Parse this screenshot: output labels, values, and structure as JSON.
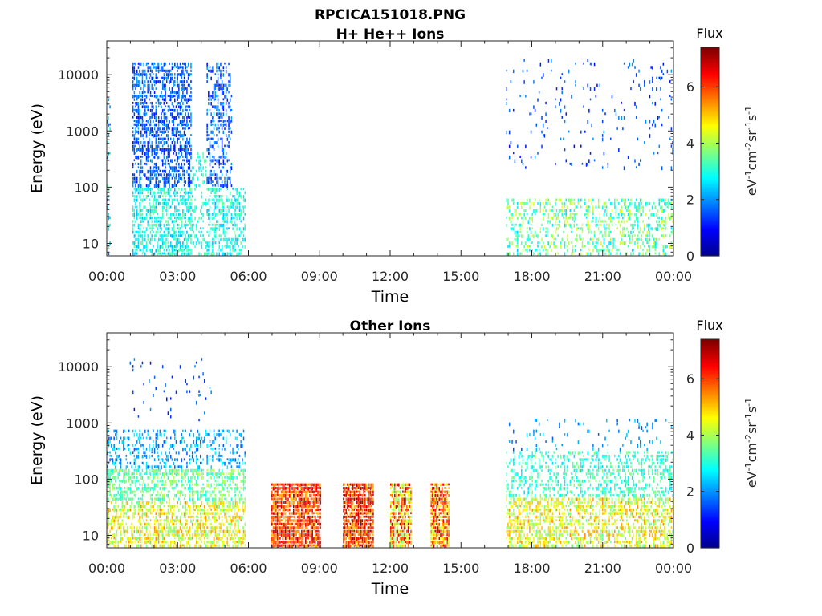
{
  "figure_title": "RPCICA151018.PNG",
  "colors": {
    "axis": "#262626",
    "colormap": [
      "#00008f",
      "#0000ff",
      "#0080ff",
      "#00ffff",
      "#80ff80",
      "#ffff00",
      "#ff8000",
      "#ff0000",
      "#800000"
    ]
  },
  "chart_data": [
    {
      "type": "heatmap",
      "title": "H+ He++ Ions",
      "xlabel": "Time",
      "ylabel": "Energy (eV)",
      "y_scale": "log",
      "xlim_hours": [
        0,
        24
      ],
      "ylim": [
        6,
        40000
      ],
      "x_tick_labels": [
        "00:00",
        "03:00",
        "06:00",
        "09:00",
        "12:00",
        "15:00",
        "18:00",
        "21:00",
        "00:00"
      ],
      "y_ticks": [
        10,
        100,
        1000,
        10000
      ],
      "y_tick_labels": [
        "10",
        "100",
        "1000",
        "10000"
      ],
      "colorbar": {
        "title": "Flux",
        "unit_base": "eV",
        "unit_exps": [
          "-1",
          "-2",
          "-1",
          "-1"
        ],
        "unit_parts": [
          "cm",
          "sr",
          "s"
        ],
        "range": [
          0,
          7.4
        ],
        "ticks": [
          0,
          2,
          4,
          6
        ],
        "tick_labels": [
          "0",
          "2",
          "4",
          "6"
        ]
      },
      "regions": [
        {
          "t": [
            0.0,
            0.15
          ],
          "e": [
            6,
            5000
          ],
          "density": 0.25,
          "flux": [
            1.5,
            3.5
          ]
        },
        {
          "t": [
            1.1,
            3.6
          ],
          "e": [
            100,
            16000
          ],
          "density": 0.55,
          "flux": [
            1.0,
            2.2
          ]
        },
        {
          "t": [
            1.1,
            3.6
          ],
          "e": [
            6,
            100
          ],
          "density": 0.6,
          "flux": [
            2.2,
            3.6
          ]
        },
        {
          "t": [
            3.6,
            4.2
          ],
          "e": [
            6,
            400
          ],
          "density": 0.25,
          "flux": [
            2.5,
            3.5
          ]
        },
        {
          "t": [
            4.2,
            5.3
          ],
          "e": [
            100,
            16000
          ],
          "density": 0.45,
          "flux": [
            1.0,
            2.2
          ]
        },
        {
          "t": [
            4.2,
            5.9
          ],
          "e": [
            6,
            100
          ],
          "density": 0.45,
          "flux": [
            2.2,
            3.6
          ]
        },
        {
          "t": [
            16.9,
            24.0
          ],
          "e": [
            6,
            60
          ],
          "density": 0.35,
          "flux": [
            2.5,
            4.5
          ]
        },
        {
          "t": [
            16.9,
            24.0
          ],
          "e": [
            200,
            20000
          ],
          "density": 0.05,
          "flux": [
            1.0,
            2.0
          ]
        }
      ]
    },
    {
      "type": "heatmap",
      "title": "Other Ions",
      "xlabel": "Time",
      "ylabel": "Energy (eV)",
      "y_scale": "log",
      "xlim_hours": [
        0,
        24
      ],
      "ylim": [
        6,
        40000
      ],
      "x_tick_labels": [
        "00:00",
        "03:00",
        "06:00",
        "09:00",
        "12:00",
        "15:00",
        "18:00",
        "21:00",
        "00:00"
      ],
      "y_ticks": [
        10,
        100,
        1000,
        10000
      ],
      "y_tick_labels": [
        "10",
        "100",
        "1000",
        "10000"
      ],
      "colorbar": {
        "title": "Flux",
        "unit_base": "eV",
        "unit_exps": [
          "-1",
          "-2",
          "-1",
          "-1"
        ],
        "unit_parts": [
          "cm",
          "sr",
          "s"
        ],
        "range": [
          0,
          7.4
        ],
        "ticks": [
          0,
          2,
          4,
          6
        ],
        "tick_labels": [
          "0",
          "2",
          "4",
          "6"
        ]
      },
      "regions": [
        {
          "t": [
            0.0,
            5.9
          ],
          "e": [
            6,
            40
          ],
          "density": 0.55,
          "flux": [
            3.5,
            5.5
          ]
        },
        {
          "t": [
            0.0,
            5.9
          ],
          "e": [
            40,
            150
          ],
          "density": 0.55,
          "flux": [
            2.8,
            4.2
          ]
        },
        {
          "t": [
            0.0,
            5.9
          ],
          "e": [
            150,
            800
          ],
          "density": 0.3,
          "flux": [
            1.5,
            2.8
          ]
        },
        {
          "t": [
            1.0,
            4.5
          ],
          "e": [
            1000,
            15000
          ],
          "density": 0.04,
          "flux": [
            1.0,
            2.0
          ]
        },
        {
          "t": [
            7.0,
            9.1
          ],
          "e": [
            6,
            80
          ],
          "density": 0.9,
          "flux": [
            5.0,
            7.2
          ]
        },
        {
          "t": [
            10.0,
            11.3
          ],
          "e": [
            6,
            80
          ],
          "density": 0.9,
          "flux": [
            5.0,
            7.2
          ]
        },
        {
          "t": [
            12.0,
            12.9
          ],
          "e": [
            6,
            80
          ],
          "density": 0.85,
          "flux": [
            3.5,
            7.0
          ]
        },
        {
          "t": [
            13.7,
            14.5
          ],
          "e": [
            6,
            80
          ],
          "density": 0.9,
          "flux": [
            4.0,
            7.0
          ]
        },
        {
          "t": [
            16.9,
            24.0
          ],
          "e": [
            6,
            45
          ],
          "density": 0.55,
          "flux": [
            3.5,
            5.5
          ]
        },
        {
          "t": [
            16.9,
            24.0
          ],
          "e": [
            45,
            300
          ],
          "density": 0.35,
          "flux": [
            2.5,
            3.8
          ]
        },
        {
          "t": [
            16.9,
            24.0
          ],
          "e": [
            300,
            1200
          ],
          "density": 0.08,
          "flux": [
            1.5,
            2.5
          ]
        }
      ]
    }
  ]
}
